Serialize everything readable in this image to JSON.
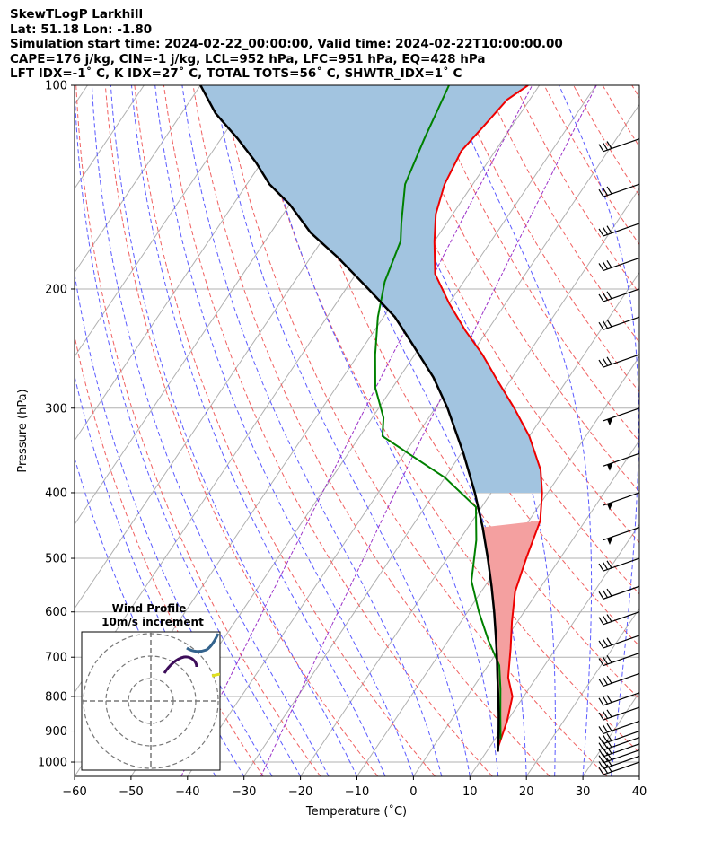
{
  "header": {
    "title": "SkewTLogP Larkhill",
    "location": "Lat: 51.18   Lon: -1.80",
    "times": "Simulation start time: 2024-02-22_00:00:00, Valid time: 2024-02-22T10:00:00.00",
    "indices1": "CAPE=176 j/kg, CIN=-1 j/kg, LCL=952 hPa, LFC=951 hPa, EQ=428 hPa",
    "indices2": "LFT IDX=-1˚ C, K IDX=27˚ C, TOTAL TOTS=56˚ C, SHWTR_IDX=1˚ C"
  },
  "hodograph": {
    "title": "Wind Profile",
    "subtitle": "10m/s increment"
  },
  "chart_data": {
    "type": "line",
    "title": "SkewTLogP Larkhill",
    "xlabel": "Temperature (˚C)",
    "ylabel": "Pressure (hPa)",
    "xlim": [
      -60,
      40
    ],
    "ylim": [
      1050,
      100
    ],
    "x_ticks": [
      -60,
      -50,
      -40,
      -30,
      -20,
      -10,
      0,
      10,
      20,
      30,
      40
    ],
    "y_ticks": [
      1000,
      900,
      800,
      700,
      600,
      500,
      400,
      300,
      200,
      100
    ],
    "grid": true,
    "skew": 35,
    "series": [
      {
        "name": "Temperature",
        "color": "#ee0000",
        "points": [
          [
            12,
            965
          ],
          [
            11.5,
            950
          ],
          [
            10,
            870
          ],
          [
            8,
            800
          ],
          [
            5,
            750
          ],
          [
            2,
            680
          ],
          [
            -1,
            620
          ],
          [
            -4,
            560
          ],
          [
            -6,
            500
          ],
          [
            -8,
            440
          ],
          [
            -11,
            400
          ],
          [
            -14,
            370
          ],
          [
            -20,
            330
          ],
          [
            -26,
            300
          ],
          [
            -33,
            270
          ],
          [
            -38,
            250
          ],
          [
            -44,
            230
          ],
          [
            -50,
            210
          ],
          [
            -56,
            190
          ],
          [
            -60,
            170
          ],
          [
            -63,
            155
          ],
          [
            -65,
            140
          ],
          [
            -66,
            125
          ],
          [
            -65,
            115
          ],
          [
            -64,
            105
          ],
          [
            -62,
            100
          ]
        ]
      },
      {
        "name": "Dewpoint",
        "color": "#008000",
        "points": [
          [
            11,
            925
          ],
          [
            8,
            850
          ],
          [
            5,
            780
          ],
          [
            2,
            720
          ],
          [
            -3,
            660
          ],
          [
            -8,
            600
          ],
          [
            -13,
            540
          ],
          [
            -17,
            470
          ],
          [
            -21,
            420
          ],
          [
            -30,
            380
          ],
          [
            -46,
            330
          ],
          [
            -48,
            310
          ],
          [
            -53,
            280
          ],
          [
            -57,
            250
          ],
          [
            -61,
            220
          ],
          [
            -64,
            195
          ],
          [
            -66,
            170
          ],
          [
            -68,
            160
          ],
          [
            -72,
            140
          ],
          [
            -74,
            120
          ],
          [
            -76,
            100
          ]
        ]
      },
      {
        "name": "Parcel",
        "color": "#000000",
        "points": [
          [
            12,
            965
          ],
          [
            11.5,
            950
          ],
          [
            9.7,
            900
          ],
          [
            7.7,
            850
          ],
          [
            5.5,
            800
          ],
          [
            3.1,
            750
          ],
          [
            0.6,
            700
          ],
          [
            -2.2,
            650
          ],
          [
            -5.3,
            600
          ],
          [
            -8.8,
            550
          ],
          [
            -12.8,
            500
          ],
          [
            -17.4,
            450
          ],
          [
            -22.9,
            400
          ],
          [
            -29.6,
            350
          ],
          [
            -37.8,
            300
          ],
          [
            -44,
            270
          ],
          [
            -52,
            240
          ],
          [
            -58,
            220
          ],
          [
            -66,
            200
          ],
          [
            -75,
            180
          ],
          [
            -83,
            165
          ],
          [
            -90,
            150
          ],
          [
            -96,
            140
          ],
          [
            -101,
            130
          ],
          [
            -107,
            120
          ],
          [
            -114,
            110
          ],
          [
            -120,
            100
          ]
        ]
      }
    ],
    "wind_barbs_pressures": [
      1000,
      980,
      960,
      940,
      920,
      900,
      870,
      830,
      790,
      740,
      690,
      650,
      600,
      550,
      500,
      450,
      400,
      350,
      300,
      250,
      220,
      200,
      180,
      160,
      140,
      120
    ]
  }
}
